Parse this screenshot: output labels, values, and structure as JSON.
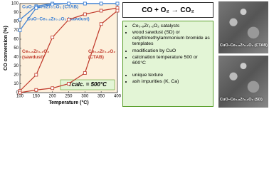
{
  "chart_data": {
    "type": "line",
    "x_label": "Temperature (°C)",
    "y_label": "CO conversion (%)",
    "annotation": "Tcalc. = 500°C",
    "x": [
      100,
      150,
      200,
      250,
      300,
      350,
      400
    ],
    "xlim": [
      100,
      400
    ],
    "xticks": [
      100,
      150,
      200,
      250,
      300,
      350,
      400
    ],
    "ylim": [
      0,
      100
    ],
    "yticks": [
      0,
      10,
      20,
      30,
      40,
      50,
      60,
      70,
      80,
      90,
      100
    ],
    "series": [
      {
        "name": "CuO–Ce₀.₈Zr₀.₂O₂ (CTAB)",
        "color": "#3b7fd4",
        "values": [
          82,
          97,
          100,
          100,
          100,
          100,
          100
        ]
      },
      {
        "name": "CuO–Ce₀.₈Zr₀.₂O₂ (sawdust)",
        "color": "#3b7fd4",
        "values": [
          70,
          95,
          99,
          100,
          100,
          100,
          100
        ]
      },
      {
        "name": "Ce₀.₈Zr₀.₂O₂ (sawdust)",
        "color": "#c0392b",
        "values": [
          2,
          20,
          62,
          82,
          88,
          92,
          95
        ]
      },
      {
        "name": "Ce₀.₈Zr₀.₂O₂ (CTAB)",
        "color": "#c0392b",
        "values": [
          0,
          3,
          5,
          10,
          22,
          77,
          92
        ]
      }
    ]
  },
  "reaction": "CO + O₂ → CO₂",
  "features": [
    "Ce₀.₈Zr₀.₂O₂ catalysts",
    "wood sawdust (SD) or cetyltrimethylammonium bromide as templates",
    "modification by CuO",
    "calcination temperature 500 or 600°C"
  ],
  "outcomes": [
    "unique texture",
    "ash impurities (K, Ca)"
  ],
  "images": [
    {
      "label": "CuO–Ce₀.₈Zr₀.₂O₂ (CTAB)"
    },
    {
      "label": "CuO–Ce₀.₈Zr₀.₂O₂ (SD)"
    }
  ]
}
